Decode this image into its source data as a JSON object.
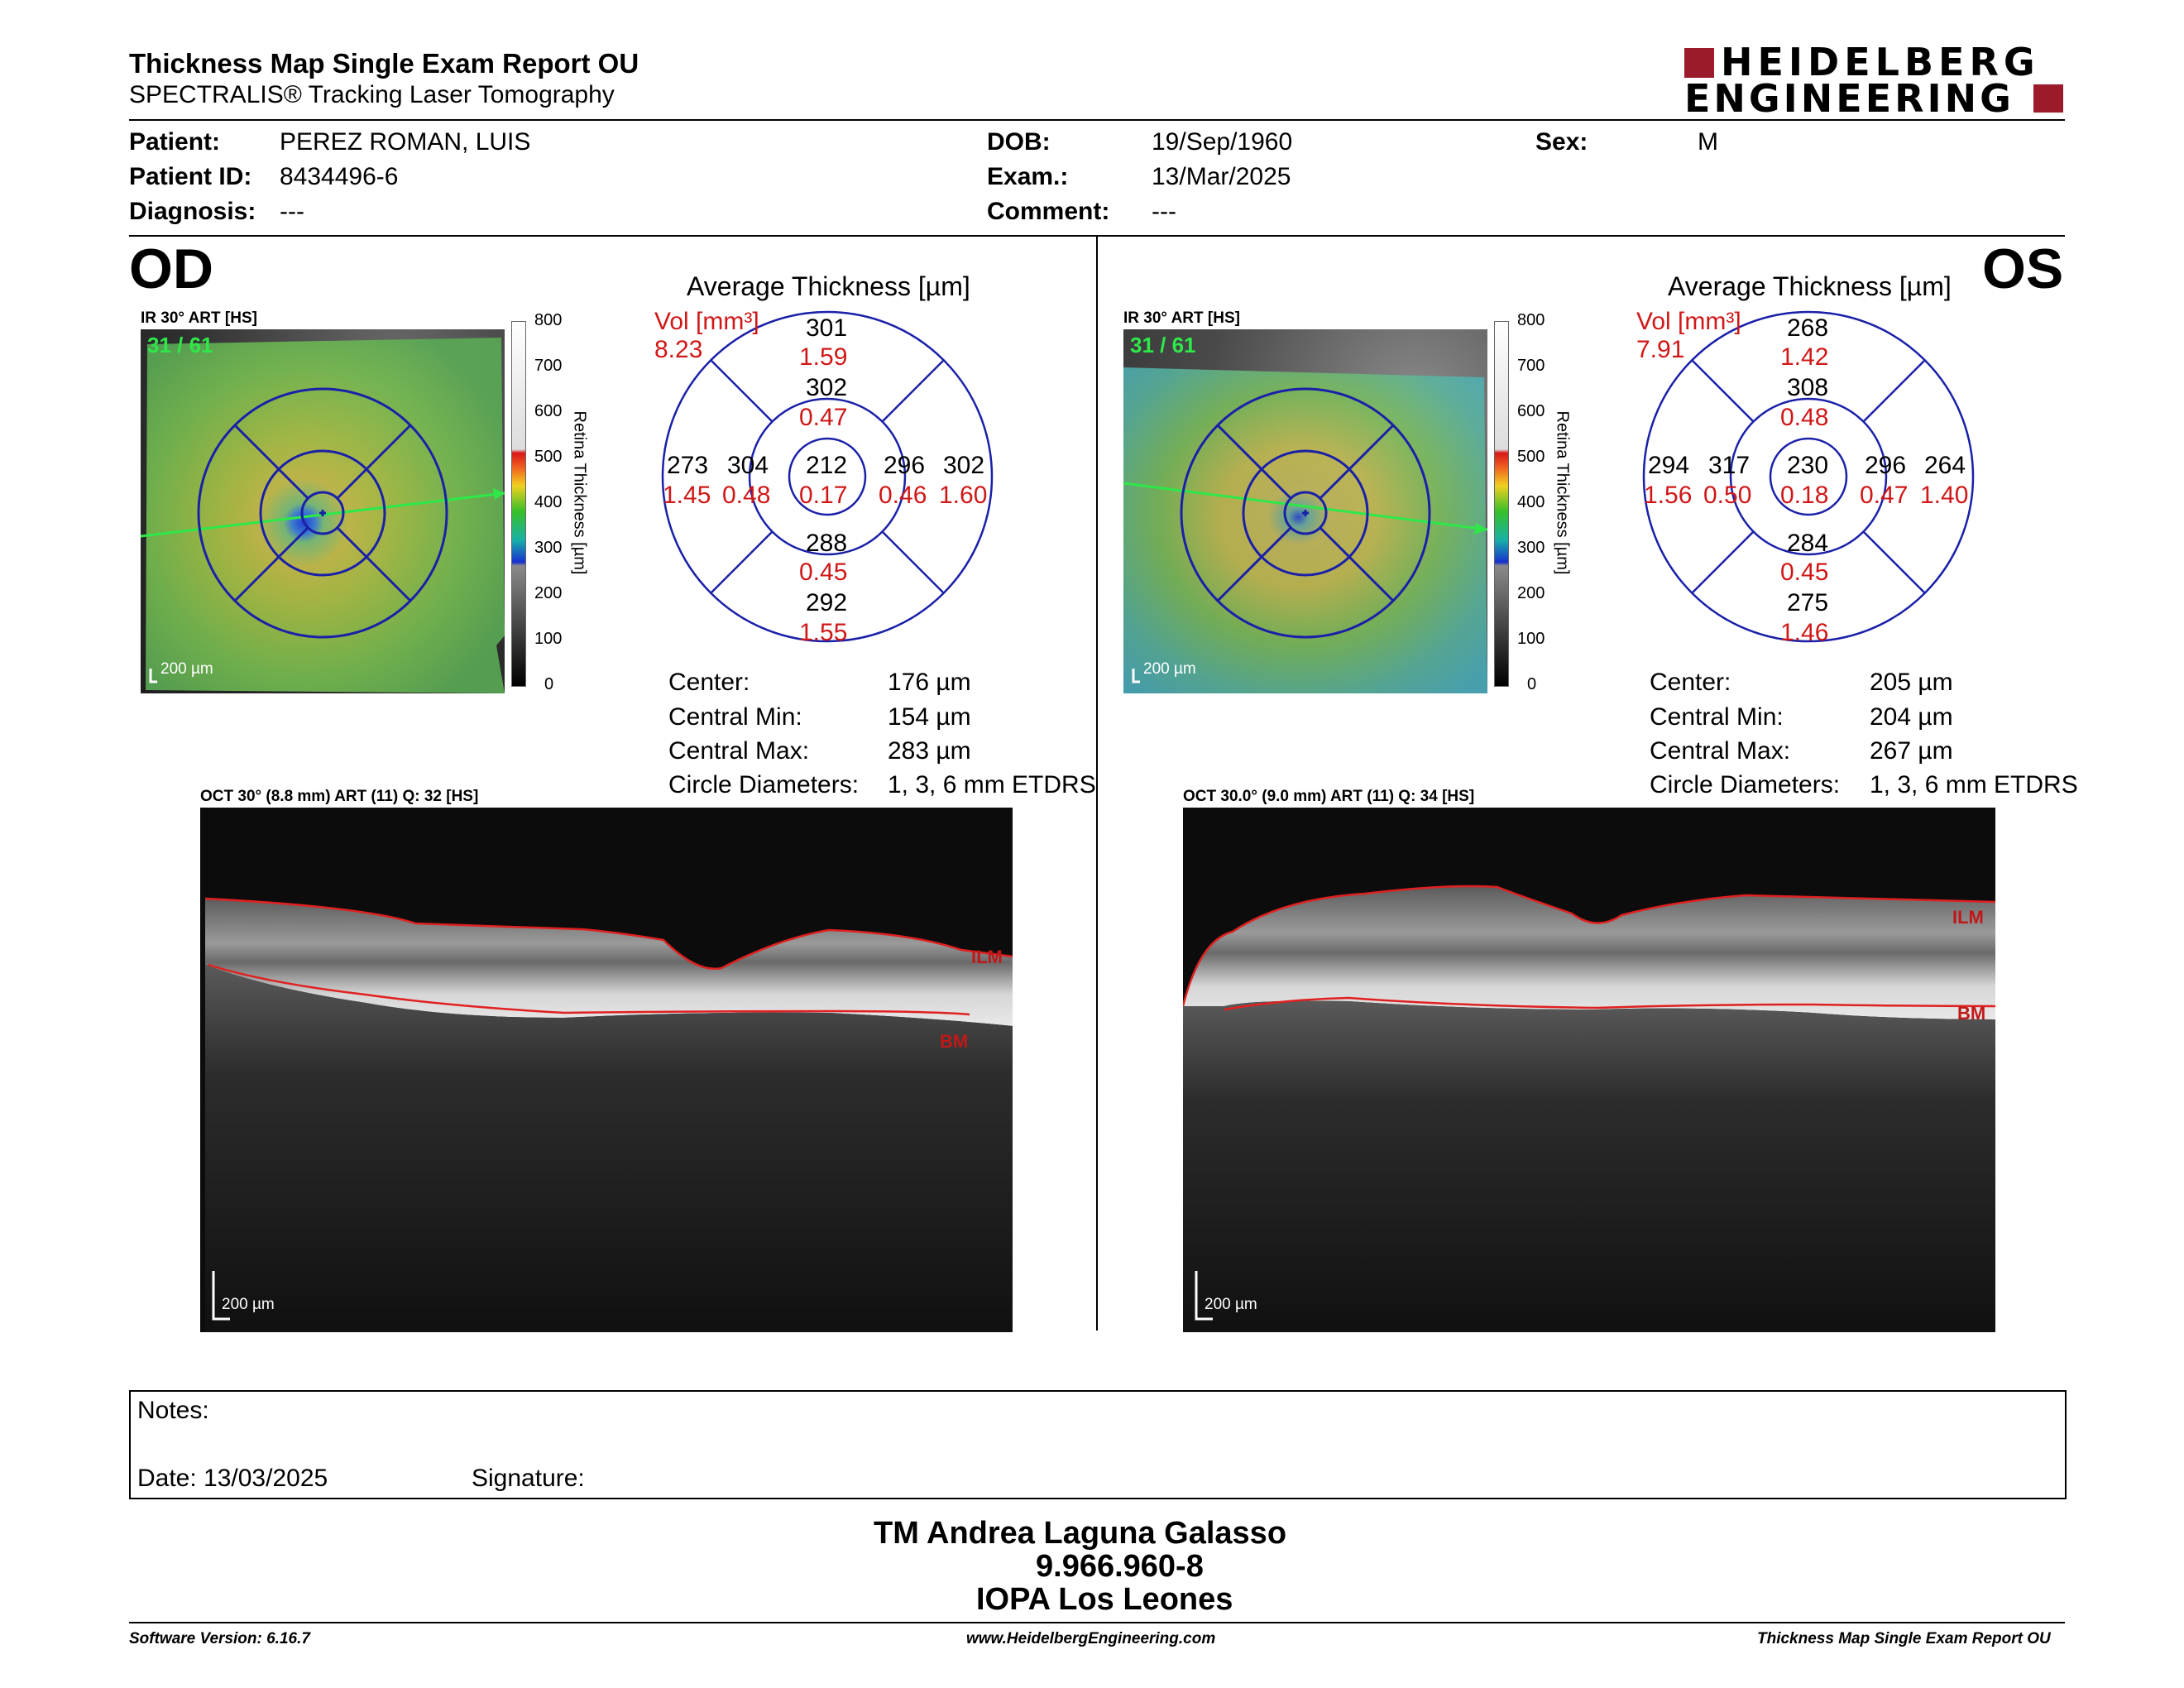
{
  "report": {
    "title": "Thickness Map Single Exam Report OU",
    "subtitle": "SPECTRALIS® Tracking Laser Tomography",
    "brand_line1": "HEIDELBERG",
    "brand_line2": "ENGINEERING"
  },
  "patient": {
    "name_label": "Patient:",
    "name": "PEREZ ROMAN, LUIS",
    "id_label": "Patient ID:",
    "id": "8434496-6",
    "diagnosis_label": "Diagnosis:",
    "diagnosis": "---",
    "dob_label": "DOB:",
    "dob": "19/Sep/1960",
    "exam_label": "Exam.:",
    "exam": "13/Mar/2025",
    "comment_label": "Comment:",
    "comment": "---",
    "sex_label": "Sex:",
    "sex": "M"
  },
  "colorbar": {
    "ticks": [
      "800",
      "700",
      "600",
      "500",
      "400",
      "300",
      "200",
      "100",
      "0"
    ],
    "axis_label": "Retina  Thickness [µm]"
  },
  "od": {
    "eye": "OD",
    "ir_label": "IR 30° ART [HS]",
    "frame": "31 / 61",
    "ir_scale": "200 µm",
    "avg_title": "Average Thickness [µm]",
    "vol_label": "Vol [mm³]",
    "vol_total": "8.23",
    "sectors": {
      "center": [
        "212",
        "0.17"
      ],
      "inner_sup": [
        "302",
        "0.47"
      ],
      "inner_temp": [
        "304",
        "0.48"
      ],
      "inner_nasal": [
        "296",
        "0.46"
      ],
      "inner_inf": [
        "288",
        "0.45"
      ],
      "outer_sup": [
        "301",
        "1.59"
      ],
      "outer_temp": [
        "273",
        "1.45"
      ],
      "outer_nasal": [
        "302",
        "1.60"
      ],
      "outer_inf": [
        "292",
        "1.55"
      ]
    },
    "stats": [
      {
        "label": "Center:",
        "value": "176 µm"
      },
      {
        "label": "Central Min:",
        "value": "154 µm"
      },
      {
        "label": "Central Max:",
        "value": "283 µm"
      },
      {
        "label": "Circle Diameters:",
        "value": "1, 3, 6 mm ETDRS"
      }
    ],
    "oct_label": "OCT 30° (8.8 mm) ART (11) Q: 32 [HS]",
    "oct_scale": "200 µm",
    "ilm": "ILM",
    "bm": "BM"
  },
  "os": {
    "eye": "OS",
    "ir_label": "IR 30° ART [HS]",
    "frame": "31 / 61",
    "ir_scale": "200 µm",
    "avg_title": "Average Thickness [µm]",
    "vol_label": "Vol [mm³]",
    "vol_total": "7.91",
    "sectors": {
      "center": [
        "230",
        "0.18"
      ],
      "inner_sup": [
        "308",
        "0.48"
      ],
      "inner_temp": [
        "296",
        "0.47"
      ],
      "inner_nasal": [
        "317",
        "0.50"
      ],
      "inner_inf": [
        "284",
        "0.45"
      ],
      "outer_sup": [
        "268",
        "1.42"
      ],
      "outer_temp": [
        "264",
        "1.40"
      ],
      "outer_nasal": [
        "294",
        "1.56"
      ],
      "outer_inf": [
        "275",
        "1.46"
      ]
    },
    "stats": [
      {
        "label": "Center:",
        "value": "205 µm"
      },
      {
        "label": "Central Min:",
        "value": "204 µm"
      },
      {
        "label": "Central Max:",
        "value": "267 µm"
      },
      {
        "label": "Circle Diameters:",
        "value": "1, 3, 6 mm ETDRS"
      }
    ],
    "oct_label": "OCT 30.0° (9.0 mm) ART (11) Q: 34 [HS]",
    "oct_scale": "200 µm",
    "ilm": "ILM",
    "bm": "BM"
  },
  "notes": {
    "label": "Notes:",
    "date": "Date: 13/03/2025",
    "signature": "Signature:"
  },
  "signer": {
    "name": "TM Andrea Laguna Galasso",
    "rut": "9.966.960-8",
    "institution": "IOPA Los Leones"
  },
  "footer": {
    "software": "Software Version: 6.16.7",
    "website": "www.HeidelbergEngineering.com",
    "report": "Thickness Map Single Exam Report OU"
  },
  "colors": {
    "accent_red": "#d01818",
    "brand_red": "#9b1b2a",
    "grid_blue": "#1a20a8"
  }
}
